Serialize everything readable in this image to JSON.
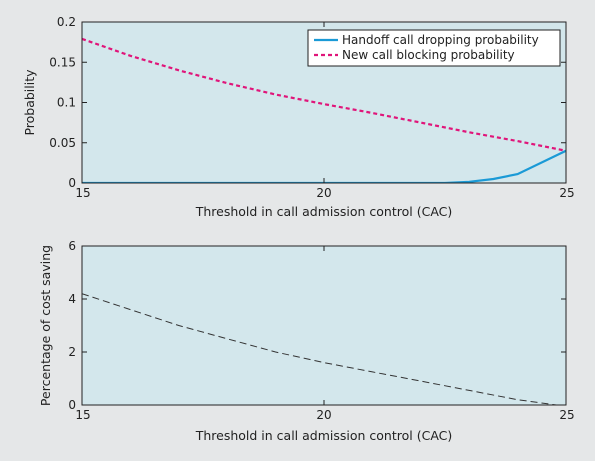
{
  "colors": {
    "background": "#e5e7e8",
    "plot_area": "#d3e7ec",
    "handoff": "#1a9ad6",
    "new_call": "#e0157a",
    "saving": "#333333"
  },
  "chart_data": [
    {
      "type": "line",
      "xlabel": "Threshold in call admission control (CAC)",
      "ylabel": "Probability",
      "xlim": [
        15,
        25
      ],
      "ylim": [
        0,
        0.2
      ],
      "xticks": [
        15,
        20,
        25
      ],
      "yticks": [
        0,
        0.05,
        0.1,
        0.15,
        0.2
      ],
      "xtick_labels": [
        "15",
        "20",
        "25"
      ],
      "ytick_labels": [
        "0",
        "0.05",
        "0.1",
        "0.15",
        "0.2"
      ],
      "grid": false,
      "legend_position": "top-right",
      "series": [
        {
          "name": "Handoff call dropping probability",
          "style": "solid",
          "color": "#1a9ad6",
          "x": [
            15,
            16,
            17,
            18,
            19,
            20,
            21,
            22,
            22.5,
            23,
            23.5,
            24,
            25
          ],
          "y": [
            0,
            0,
            0,
            0,
            0,
            0,
            0,
            0,
            0,
            0.0015,
            0.005,
            0.011,
            0.04
          ]
        },
        {
          "name": "New call blocking probability",
          "style": "dashed",
          "color": "#e0157a",
          "x": [
            15,
            16,
            17,
            18,
            19,
            20,
            21,
            22,
            23,
            24,
            25
          ],
          "y": [
            0.179,
            0.158,
            0.14,
            0.124,
            0.11,
            0.098,
            0.087,
            0.075,
            0.063,
            0.052,
            0.04
          ]
        }
      ]
    },
    {
      "type": "line",
      "xlabel": "Threshold in call admission control (CAC)",
      "ylabel": "Percentage of cost saving",
      "xlim": [
        15,
        25
      ],
      "ylim": [
        0,
        6
      ],
      "xticks": [
        15,
        20,
        25
      ],
      "yticks": [
        0,
        2,
        4,
        6
      ],
      "xtick_labels": [
        "15",
        "20",
        "25"
      ],
      "ytick_labels": [
        "0",
        "2",
        "4",
        "6"
      ],
      "grid": false,
      "series": [
        {
          "style": "dashed",
          "color": "#333333",
          "x": [
            15,
            16,
            17,
            18,
            19,
            20,
            21,
            22,
            23,
            24,
            25
          ],
          "y": [
            4.2,
            3.6,
            3.0,
            2.5,
            2.0,
            1.6,
            1.25,
            0.9,
            0.55,
            0.2,
            -0.05
          ]
        }
      ]
    }
  ]
}
